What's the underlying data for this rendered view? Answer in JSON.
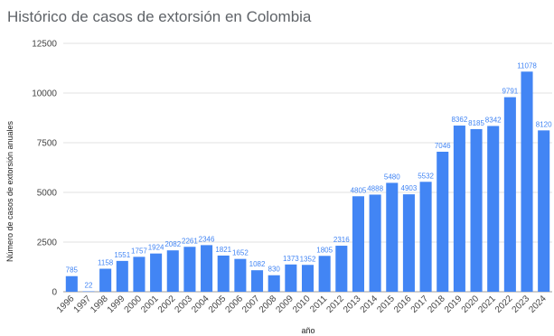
{
  "chart_data": {
    "type": "bar",
    "title": "Histórico de casos de extorsión en Colombia",
    "xlabel": "año",
    "ylabel": "Número de casos de extorsión anuales",
    "ylim": [
      0,
      12500
    ],
    "yticks": [
      "0",
      "2500",
      "5000",
      "7500",
      "10000",
      "12500"
    ],
    "grid": true,
    "legend": "none",
    "bar_color": "#4285f4",
    "label_color": "#4285f4",
    "categories": [
      "1996",
      "1997",
      "1998",
      "1999",
      "2000",
      "2001",
      "2002",
      "2003",
      "2004",
      "2005",
      "2006",
      "2007",
      "2008",
      "2009",
      "2010",
      "2011",
      "2012",
      "2013",
      "2014",
      "2015",
      "2016",
      "2017",
      "2018",
      "2019",
      "2020",
      "2021",
      "2022",
      "2023",
      "2024"
    ],
    "values": [
      785,
      22,
      1158,
      1551,
      1757,
      1924,
      2082,
      2261,
      2346,
      1821,
      1652,
      1082,
      830,
      1373,
      1352,
      1805,
      2316,
      4805,
      4888,
      5480,
      4903,
      5532,
      7046,
      8362,
      8185,
      8342,
      9791,
      11078,
      8120
    ],
    "value_labels": [
      "785",
      "22",
      "1158",
      "1551",
      "1757",
      "1924",
      "2082",
      "2261",
      "2346",
      "1821",
      "1652",
      "1082",
      "830",
      "1373",
      "1352",
      "1805",
      "2316",
      "4805",
      "4888",
      "5480",
      "4903",
      "5532",
      "7046",
      "8362",
      "8185",
      "8342",
      "9791",
      "11078",
      "8120"
    ]
  }
}
